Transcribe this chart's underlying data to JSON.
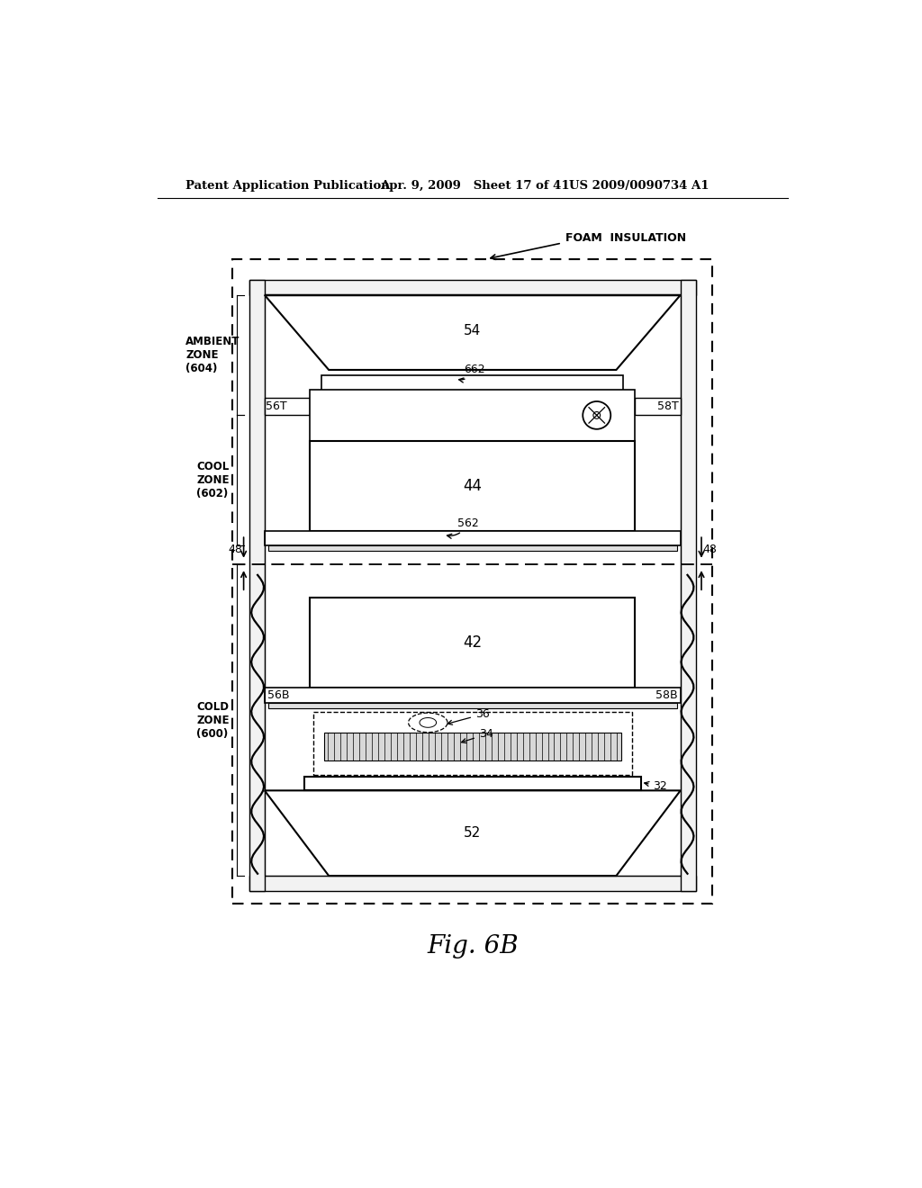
{
  "title_left": "Patent Application Publication",
  "title_mid": "Apr. 9, 2009   Sheet 17 of 41",
  "title_right": "US 2009/0090734 A1",
  "fig_label": "Fig. 6B",
  "bg_color": "#ffffff",
  "lc": "#000000"
}
